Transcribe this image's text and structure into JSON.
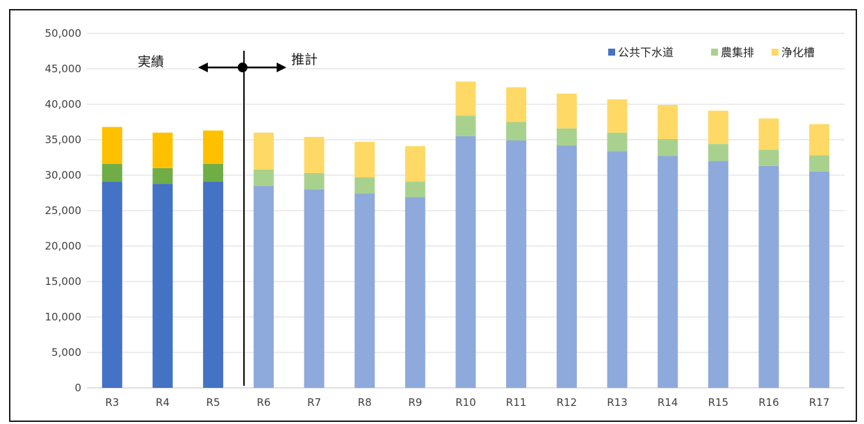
{
  "chart_data": {
    "type": "bar",
    "stacked": true,
    "categories": [
      "R3",
      "R4",
      "R5",
      "R6",
      "R7",
      "R8",
      "R9",
      "R10",
      "R11",
      "R12",
      "R13",
      "R14",
      "R15",
      "R16",
      "R17"
    ],
    "series": [
      {
        "name": "公共下水道",
        "values": [
          29100,
          28800,
          29100,
          28500,
          28000,
          27400,
          26900,
          35500,
          34900,
          34200,
          33400,
          32700,
          32000,
          31300,
          30500
        ],
        "color": "#4472C4",
        "projected_color": "#8EA9DB"
      },
      {
        "name": "農集排",
        "values": [
          2500,
          2200,
          2500,
          2300,
          2300,
          2300,
          2200,
          2900,
          2600,
          2400,
          2600,
          2400,
          2400,
          2300,
          2300
        ],
        "color": "#70AD47",
        "projected_color": "#A9D18E"
      },
      {
        "name": "浄化槽",
        "values": [
          5200,
          5000,
          4700,
          5200,
          5100,
          5000,
          5000,
          4800,
          4900,
          4900,
          4700,
          4800,
          4700,
          4400,
          4400
        ],
        "color": "#FFC000",
        "projected_color": "#FFD966"
      }
    ],
    "actual_count": 3,
    "ylim": [
      0,
      50000
    ],
    "y_ticks": [
      "0",
      "5,000",
      "10,000",
      "15,000",
      "20,000",
      "25,000",
      "30,000",
      "35,000",
      "40,000",
      "45,000",
      "50,000"
    ],
    "y_tick_values": [
      0,
      5000,
      10000,
      15000,
      20000,
      25000,
      30000,
      35000,
      40000,
      45000,
      50000
    ],
    "grid": true,
    "legend_position": "top-right",
    "annotations": {
      "actual_label": "実績",
      "projection_label": "推計"
    }
  }
}
